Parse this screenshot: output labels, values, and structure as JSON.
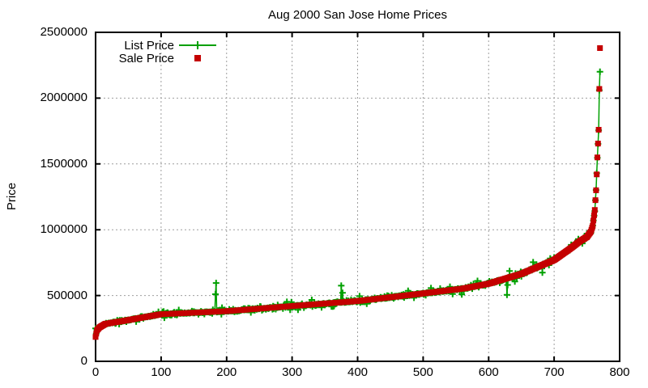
{
  "chart_data": {
    "type": "scatter",
    "title": "Aug 2000 San Jose Home Prices",
    "xlabel": "",
    "ylabel": "Price",
    "xlim": [
      0,
      800
    ],
    "ylim": [
      0,
      2500000
    ],
    "xticks": {
      "values": [
        0,
        100,
        200,
        300,
        400,
        500,
        600,
        700,
        800
      ],
      "labels": [
        "0",
        "100",
        "200",
        "300",
        "400",
        "500",
        "600",
        "700",
        "800"
      ]
    },
    "yticks": {
      "values": [
        0,
        500000,
        1000000,
        1500000,
        2000000,
        2500000
      ],
      "labels": [
        "0",
        "500000",
        "1000000",
        "1500000",
        "2000000",
        "2500000"
      ]
    },
    "grid": "dotted-gray-major",
    "legend_position": "top-left-inside",
    "n_points": 771,
    "series": [
      {
        "name": "List Price",
        "plot_style": "linespoints",
        "marker": "plus",
        "color": "#00a000",
        "relation": "sale_price_plus_scatter",
        "noise": {
          "seed": 9,
          "p_small": 0.7,
          "small": 0.02,
          "p_medium": 0.22,
          "medium": 0.07,
          "large": 0.17,
          "tail_start": 751,
          "tail_damp": 0.25
        },
        "outliers": {
          "0": 250000,
          "183": 510000,
          "184": 595000,
          "375": 575000,
          "377": 520000,
          "628": 505000,
          "769": 2060000,
          "770": 2200000
        }
      },
      {
        "name": "Sale Price",
        "plot_style": "points",
        "marker": "filled-square",
        "color": "#c40000",
        "anchors": [
          [
            0,
            185000
          ],
          [
            2,
            235000
          ],
          [
            6,
            258000
          ],
          [
            15,
            285000
          ],
          [
            40,
            305000
          ],
          [
            100,
            358000
          ],
          [
            200,
            381000
          ],
          [
            300,
            420000
          ],
          [
            400,
            458000
          ],
          [
            500,
            516000
          ],
          [
            560,
            552000
          ],
          [
            600,
            590000
          ],
          [
            650,
            665000
          ],
          [
            700,
            770000
          ],
          [
            725,
            858000
          ],
          [
            740,
            915000
          ],
          [
            750,
            945000
          ],
          [
            756,
            985000
          ],
          [
            759,
            1030000
          ],
          [
            762,
            1150000
          ],
          [
            764,
            1300000
          ],
          [
            765,
            1420000
          ],
          [
            766,
            1550000
          ],
          [
            768,
            1760000
          ],
          [
            769,
            2070000
          ],
          [
            770,
            2380000
          ]
        ]
      }
    ],
    "colors": {
      "grid": "#9e9e9e",
      "border": "#000000",
      "background": "#ffffff",
      "text": "#000000"
    }
  }
}
